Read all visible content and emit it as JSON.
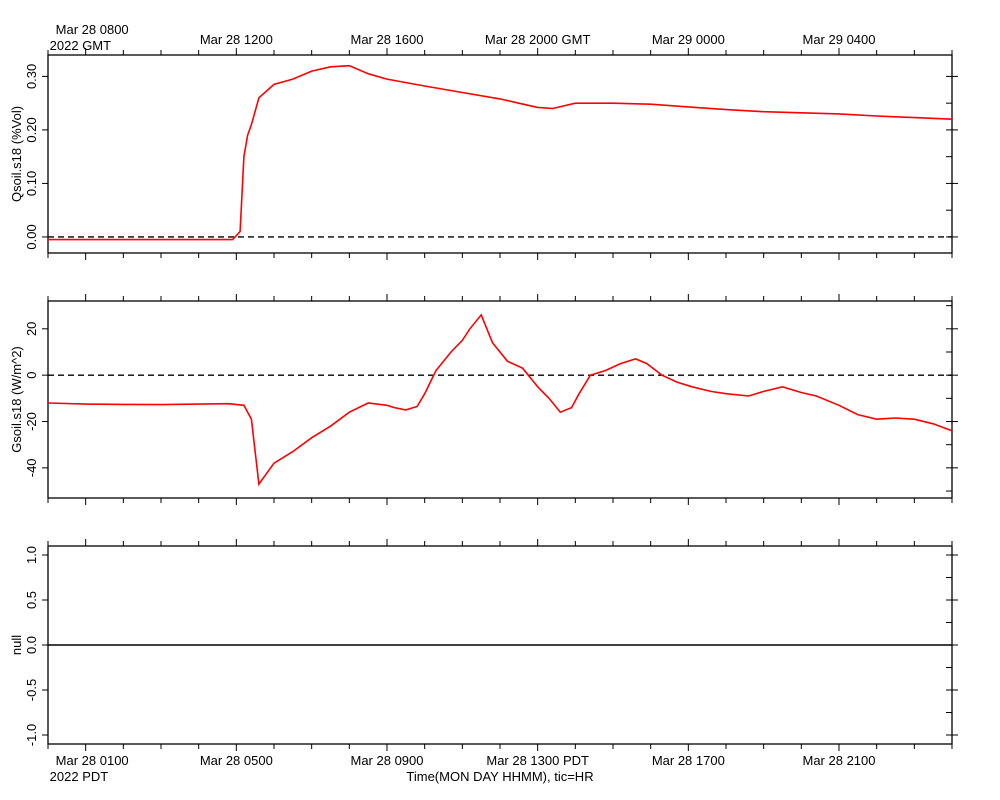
{
  "top_axis": {
    "ticks": [
      {
        "hour": 0,
        "label": "Mar 28 0800",
        "sublabel": "2022 GMT"
      },
      {
        "hour": 4,
        "label": "Mar 28 1200"
      },
      {
        "hour": 8,
        "label": "Mar 28 1600"
      },
      {
        "hour": 12,
        "label": "Mar 28 2000 GMT"
      },
      {
        "hour": 16,
        "label": "Mar 29 0000"
      },
      {
        "hour": 20,
        "label": "Mar 29 0400"
      }
    ]
  },
  "bottom_axis": {
    "ticks": [
      {
        "hour": 0,
        "label": "Mar 28 0100",
        "sublabel": "2022 PDT"
      },
      {
        "hour": 4,
        "label": "Mar 28 0500"
      },
      {
        "hour": 8,
        "label": "Mar 28 0900"
      },
      {
        "hour": 12,
        "label": "Mar 28 1300 PDT"
      },
      {
        "hour": 16,
        "label": "Mar 28 1700"
      },
      {
        "hour": 20,
        "label": "Mar 28 2100"
      }
    ],
    "xlabel": "Time(MON DAY HHMM), tic=HR"
  },
  "chart_data": [
    {
      "type": "line",
      "ylabel": "Qsoil.s18 (%Vol)",
      "xlim": [
        -1,
        23
      ],
      "ylim": [
        -0.03,
        0.34
      ],
      "yticks": [
        0.0,
        0.1,
        0.2,
        0.3
      ],
      "ytick_labels": [
        "0.00",
        "0.10",
        "0.20",
        "0.30"
      ],
      "zero_line": true,
      "color": "#ff0000",
      "x": [
        -1,
        0,
        1,
        2,
        3,
        3.9,
        4.1,
        4.2,
        4.3,
        4.4,
        4.6,
        5.0,
        5.5,
        6.0,
        6.5,
        7.0,
        7.5,
        8.0,
        9.0,
        10.0,
        11.0,
        11.5,
        12.0,
        12.4,
        13.0,
        14.0,
        15.0,
        16.0,
        17.0,
        18.0,
        19.0,
        20.0,
        21.0,
        22.0,
        23.0
      ],
      "y": [
        -0.005,
        -0.005,
        -0.005,
        -0.005,
        -0.005,
        -0.005,
        0.01,
        0.15,
        0.19,
        0.21,
        0.26,
        0.285,
        0.295,
        0.31,
        0.318,
        0.32,
        0.305,
        0.295,
        0.282,
        0.27,
        0.258,
        0.25,
        0.242,
        0.24,
        0.25,
        0.25,
        0.248,
        0.243,
        0.238,
        0.234,
        0.232,
        0.23,
        0.226,
        0.223,
        0.22
      ]
    },
    {
      "type": "line",
      "ylabel": "Gsoil.s18 (W/m^2)",
      "xlim": [
        -1,
        23
      ],
      "ylim": [
        -53,
        32
      ],
      "yticks": [
        -40,
        -20,
        0,
        20
      ],
      "ytick_labels": [
        "-40",
        "-20",
        "0",
        "20"
      ],
      "zero_line": true,
      "color": "#ff0000",
      "x": [
        -1,
        0,
        1,
        2,
        3,
        3.8,
        4.2,
        4.4,
        4.6,
        5.0,
        5.5,
        6.0,
        6.5,
        7.0,
        7.5,
        8.0,
        8.2,
        8.5,
        8.8,
        9.0,
        9.3,
        9.7,
        10.0,
        10.2,
        10.5,
        10.8,
        11.2,
        11.6,
        12.0,
        12.3,
        12.6,
        12.9,
        13.1,
        13.4,
        13.8,
        14.2,
        14.6,
        14.9,
        15.3,
        15.7,
        16.1,
        16.6,
        17.0,
        17.6,
        18.0,
        18.5,
        19.0,
        19.4,
        20.0,
        20.5,
        21.0,
        21.5,
        22.0,
        22.5,
        23.0
      ],
      "y": [
        -12,
        -12.5,
        -12.6,
        -12.7,
        -12.5,
        -12.3,
        -13,
        -19,
        -47,
        -38,
        -33,
        -27,
        -22,
        -16,
        -12,
        -13,
        -14,
        -15,
        -13.5,
        -8,
        2,
        10,
        15,
        20,
        26,
        14,
        6,
        3,
        -5,
        -10,
        -16,
        -14,
        -8,
        0,
        2,
        5,
        7,
        5,
        0,
        -3,
        -5,
        -7,
        -8,
        -9,
        -7,
        -5,
        -7.5,
        -9,
        -13,
        -17,
        -19,
        -18.5,
        -19,
        -21,
        -24
      ]
    },
    {
      "type": "line",
      "ylabel": "null",
      "xlim": [
        -1,
        23
      ],
      "ylim": [
        -1.1,
        1.1
      ],
      "yticks": [
        -1.0,
        -0.5,
        0.0,
        0.5,
        1.0
      ],
      "ytick_labels": [
        "-1.0",
        "-0.5",
        "0.0",
        "0.5",
        "1.0"
      ],
      "zero_line": false,
      "color": "#000000",
      "x": [
        -1,
        23
      ],
      "y": [
        0,
        0
      ]
    }
  ]
}
